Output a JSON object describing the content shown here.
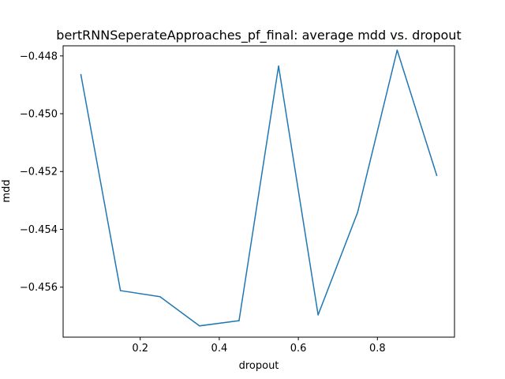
{
  "chart_data": {
    "type": "line",
    "title": "bertRNNSeperateApproaches_pf_final: average mdd vs. dropout",
    "xlabel": "dropout",
    "ylabel": "mdd",
    "xlim": [
      0.005,
      0.995
    ],
    "ylim": [
      -0.45773,
      -0.44765
    ],
    "xticks": [
      0.2,
      0.4,
      0.6,
      0.8
    ],
    "xtick_labels": [
      "0.2",
      "0.4",
      "0.6",
      "0.8"
    ],
    "yticks": [
      -0.448,
      -0.45,
      -0.452,
      -0.454,
      -0.456
    ],
    "ytick_labels": [
      "−0.448",
      "−0.450",
      "−0.452",
      "−0.454",
      "−0.456"
    ],
    "grid": false,
    "series": [
      {
        "color": "#1f77b4",
        "x": [
          0.05,
          0.15,
          0.25,
          0.35,
          0.45,
          0.55,
          0.65,
          0.75,
          0.85,
          0.95
        ],
        "y": [
          -0.44865,
          -0.45612,
          -0.45633,
          -0.45734,
          -0.45716,
          -0.44835,
          -0.45696,
          -0.45341,
          -0.4478,
          -0.45213
        ]
      }
    ]
  }
}
